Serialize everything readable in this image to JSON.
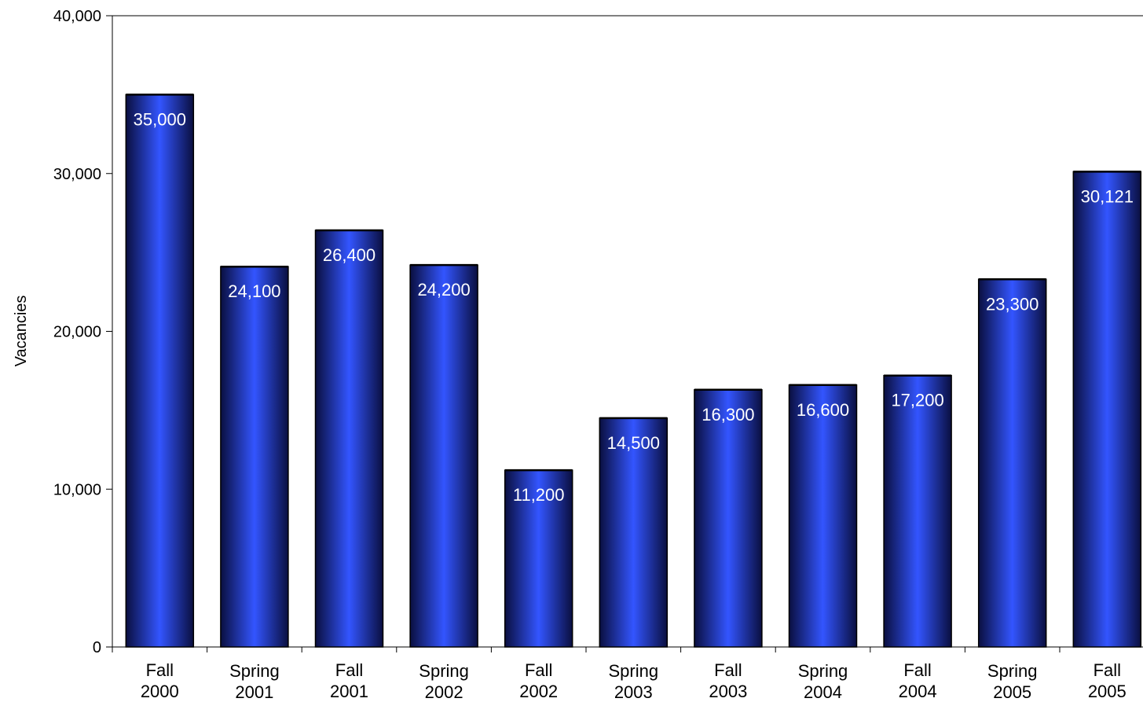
{
  "chart_data": {
    "type": "bar",
    "title": "",
    "xlabel": "",
    "ylabel": "Vacancies",
    "ylim": [
      0,
      40000
    ],
    "yticks": [
      0,
      10000,
      20000,
      30000,
      40000
    ],
    "ytick_labels": [
      "0",
      "10,000",
      "20,000",
      "30,000",
      "40,000"
    ],
    "grid": false,
    "legend": "none",
    "categories": [
      [
        "Fall",
        "2000"
      ],
      [
        "Spring",
        "2001"
      ],
      [
        "Fall",
        "2001"
      ],
      [
        "Spring",
        "2002"
      ],
      [
        "Fall",
        "2002"
      ],
      [
        "Spring",
        "2003"
      ],
      [
        "Fall",
        "2003"
      ],
      [
        "Spring",
        "2004"
      ],
      [
        "Fall",
        "2004"
      ],
      [
        "Spring",
        "2005"
      ],
      [
        "Fall",
        "2005"
      ]
    ],
    "values": [
      35000,
      24100,
      26400,
      24200,
      11200,
      14500,
      16300,
      16600,
      17200,
      23300,
      30121
    ],
    "data_labels": [
      "35,000",
      "24,100",
      "26,400",
      "24,200",
      "11,200",
      "14,500",
      "16,300",
      "16,600",
      "17,200",
      "23,300",
      "30,121"
    ],
    "colors": {
      "bar_center": "#3355ff",
      "bar_edge": "#0a0f40",
      "bar_outline": "#000000",
      "data_label": "#ffffff",
      "axis": "#000000"
    }
  }
}
